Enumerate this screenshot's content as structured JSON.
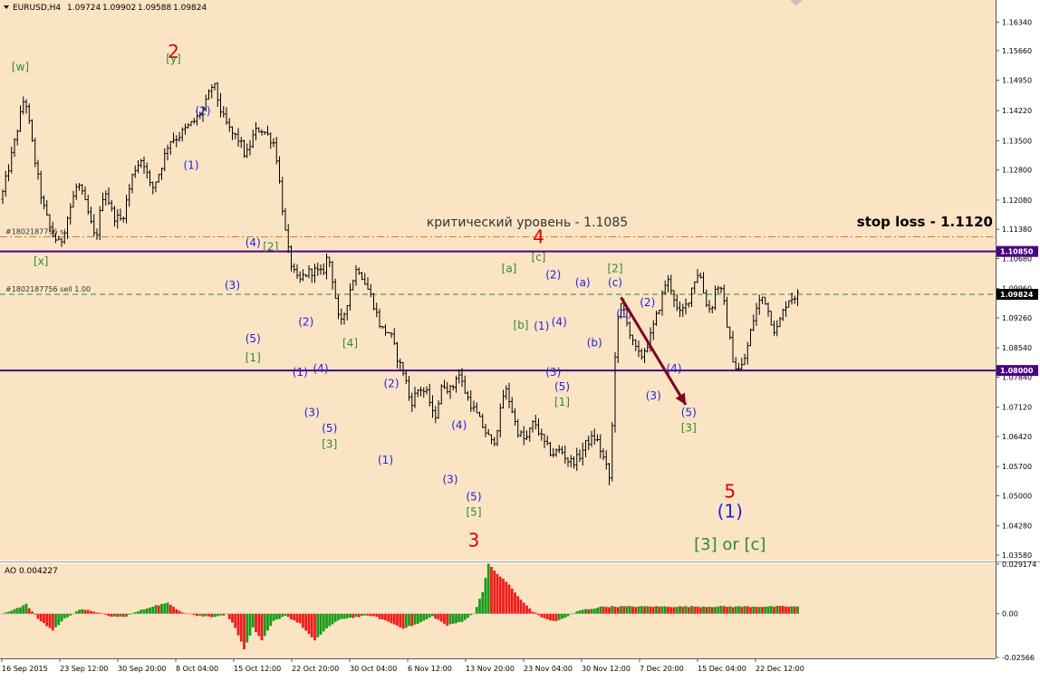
{
  "chart_data": [
    {
      "type": "ohlc",
      "header": {
        "symbol_timeframe": "EURUSD,H4",
        "open": "1.09724",
        "high": "1.09902",
        "low": "1.09588",
        "close": "1.09824"
      },
      "current_price": 1.09824,
      "ylim": [
        1.0345,
        1.1687
      ],
      "y_ticks": [
        "1.16340",
        "1.15660",
        "1.14950",
        "1.14220",
        "1.13500",
        "1.12800",
        "1.12080",
        "1.11380",
        "1.10680",
        "1.09960",
        "1.09260",
        "1.08540",
        "1.07840",
        "1.07120",
        "1.06420",
        "1.05700",
        "1.05000",
        "1.04280",
        "1.03580"
      ],
      "x_ticks": [
        "16 Sep 2015",
        "23 Sep 12:00",
        "30 Sep 20:00",
        "8 Oct 04:00",
        "15 Oct 12:00",
        "22 Oct 20:00",
        "30 Oct 04:00",
        "6 Nov 12:00",
        "13 Nov 20:00",
        "23 Nov 04:00",
        "30 Nov 12:00",
        "7 Dec 20:00",
        "15 Dec 04:00",
        "22 Dec 12:00"
      ],
      "price_path": [
        {
          "bar": 0,
          "price": 1.121
        },
        {
          "bar": 4,
          "price": 1.133
        },
        {
          "bar": 8,
          "price": 1.146
        },
        {
          "bar": 11,
          "price": 1.132
        },
        {
          "bar": 14,
          "price": 1.12
        },
        {
          "bar": 17,
          "price": 1.113
        },
        {
          "bar": 20,
          "price": 1.11
        },
        {
          "bar": 23,
          "price": 1.118
        },
        {
          "bar": 26,
          "price": 1.125
        },
        {
          "bar": 29,
          "price": 1.119
        },
        {
          "bar": 32,
          "price": 1.111
        },
        {
          "bar": 35,
          "price": 1.124
        },
        {
          "bar": 38,
          "price": 1.117
        },
        {
          "bar": 41,
          "price": 1.116
        },
        {
          "bar": 45,
          "price": 1.128
        },
        {
          "bar": 48,
          "price": 1.131
        },
        {
          "bar": 51,
          "price": 1.123
        },
        {
          "bar": 54,
          "price": 1.128
        },
        {
          "bar": 57,
          "price": 1.135
        },
        {
          "bar": 60,
          "price": 1.136
        },
        {
          "bar": 63,
          "price": 1.138
        },
        {
          "bar": 66,
          "price": 1.14
        },
        {
          "bar": 69,
          "price": 1.143
        },
        {
          "bar": 72,
          "price": 1.149
        },
        {
          "bar": 75,
          "price": 1.141
        },
        {
          "bar": 78,
          "price": 1.137
        },
        {
          "bar": 81,
          "price": 1.135
        },
        {
          "bar": 83,
          "price": 1.131
        },
        {
          "bar": 86,
          "price": 1.137
        },
        {
          "bar": 88,
          "price": 1.138
        },
        {
          "bar": 91,
          "price": 1.136
        },
        {
          "bar": 93,
          "price": 1.134
        },
        {
          "bar": 95,
          "price": 1.122
        },
        {
          "bar": 97,
          "price": 1.11
        },
        {
          "bar": 99,
          "price": 1.104
        },
        {
          "bar": 101,
          "price": 1.101
        },
        {
          "bar": 103,
          "price": 1.103
        },
        {
          "bar": 106,
          "price": 1.104
        },
        {
          "bar": 109,
          "price": 1.103
        },
        {
          "bar": 111,
          "price": 1.108
        },
        {
          "bar": 113,
          "price": 1.1
        },
        {
          "bar": 115,
          "price": 1.09
        },
        {
          "bar": 117,
          "price": 1.095
        },
        {
          "bar": 119,
          "price": 1.101
        },
        {
          "bar": 121,
          "price": 1.105
        },
        {
          "bar": 123,
          "price": 1.102
        },
        {
          "bar": 126,
          "price": 1.097
        },
        {
          "bar": 129,
          "price": 1.09
        },
        {
          "bar": 132,
          "price": 1.089
        },
        {
          "bar": 135,
          "price": 1.082
        },
        {
          "bar": 137,
          "price": 1.079
        },
        {
          "bar": 139,
          "price": 1.072
        },
        {
          "bar": 142,
          "price": 1.076
        },
        {
          "bar": 145,
          "price": 1.074
        },
        {
          "bar": 147,
          "price": 1.068
        },
        {
          "bar": 150,
          "price": 1.077
        },
        {
          "bar": 153,
          "price": 1.075
        },
        {
          "bar": 155,
          "price": 1.08
        },
        {
          "bar": 158,
          "price": 1.074
        },
        {
          "bar": 161,
          "price": 1.07
        },
        {
          "bar": 164,
          "price": 1.066
        },
        {
          "bar": 167,
          "price": 1.062
        },
        {
          "bar": 169,
          "price": 1.068
        },
        {
          "bar": 171,
          "price": 1.076
        },
        {
          "bar": 173,
          "price": 1.072
        },
        {
          "bar": 175,
          "price": 1.066
        },
        {
          "bar": 178,
          "price": 1.063
        },
        {
          "bar": 181,
          "price": 1.068
        },
        {
          "bar": 184,
          "price": 1.063
        },
        {
          "bar": 187,
          "price": 1.06
        },
        {
          "bar": 190,
          "price": 1.061
        },
        {
          "bar": 193,
          "price": 1.058
        },
        {
          "bar": 196,
          "price": 1.059
        },
        {
          "bar": 199,
          "price": 1.063
        },
        {
          "bar": 202,
          "price": 1.064
        },
        {
          "bar": 205,
          "price": 1.058
        },
        {
          "bar": 207,
          "price": 1.053
        },
        {
          "bar": 208,
          "price": 1.08
        },
        {
          "bar": 210,
          "price": 1.096
        },
        {
          "bar": 212,
          "price": 1.094
        },
        {
          "bar": 214,
          "price": 1.087
        },
        {
          "bar": 217,
          "price": 1.083
        },
        {
          "bar": 220,
          "price": 1.087
        },
        {
          "bar": 223,
          "price": 1.094
        },
        {
          "bar": 226,
          "price": 1.102
        },
        {
          "bar": 228,
          "price": 1.099
        },
        {
          "bar": 230,
          "price": 1.093
        },
        {
          "bar": 233,
          "price": 1.096
        },
        {
          "bar": 235,
          "price": 1.101
        },
        {
          "bar": 237,
          "price": 1.104
        },
        {
          "bar": 239,
          "price": 1.097
        },
        {
          "bar": 241,
          "price": 1.094
        },
        {
          "bar": 243,
          "price": 1.101
        },
        {
          "bar": 245,
          "price": 1.098
        },
        {
          "bar": 247,
          "price": 1.089
        },
        {
          "bar": 249,
          "price": 1.081
        },
        {
          "bar": 251,
          "price": 1.08
        },
        {
          "bar": 253,
          "price": 1.084
        },
        {
          "bar": 255,
          "price": 1.091
        },
        {
          "bar": 257,
          "price": 1.096
        },
        {
          "bar": 259,
          "price": 1.098
        },
        {
          "bar": 261,
          "price": 1.093
        },
        {
          "bar": 263,
          "price": 1.089
        },
        {
          "bar": 265,
          "price": 1.093
        },
        {
          "bar": 267,
          "price": 1.097
        },
        {
          "bar": 270,
          "price": 1.098
        }
      ],
      "horizontal_lines": [
        {
          "price": 1.1085,
          "style": "solid",
          "color": "#4b0082",
          "price_tag": "1.10850"
        },
        {
          "price": 1.08,
          "style": "solid",
          "color": "#4b0082",
          "price_tag": "1.08000"
        },
        {
          "price": 1.112,
          "style": "dashdot",
          "color": "#e07030",
          "label": "#1802187756 sl"
        },
        {
          "price": 1.09824,
          "style": "dashed",
          "color": "#2e8b2e",
          "label": "#1802187756 sell 1.00",
          "price_tag": "1.09824"
        }
      ],
      "annotations": {
        "critical_level": "критический уровень - 1.1085",
        "stop_loss": "stop loss - 1.1120"
      },
      "wave_labels": [
        {
          "text": "[w]",
          "color": "#2e8b2e",
          "bar": 6,
          "price": 1.1525,
          "size": 12
        },
        {
          "text": "[x]",
          "color": "#2e8b2e",
          "bar": 13,
          "price": 1.106,
          "size": 12
        },
        {
          "text": "2",
          "color": "#dd0000",
          "bar": 58,
          "price": 1.156,
          "size": 20
        },
        {
          "text": "[y]",
          "color": "#2e8b2e",
          "bar": 58,
          "price": 1.1545,
          "size": 12
        },
        {
          "text": "(2)",
          "color": "#2222dd",
          "bar": 68,
          "price": 1.142,
          "size": 12
        },
        {
          "text": "(1)",
          "color": "#2222dd",
          "bar": 64,
          "price": 1.129,
          "size": 12
        },
        {
          "text": "(4)",
          "color": "#2222dd",
          "bar": 85,
          "price": 1.1105,
          "size": 12
        },
        {
          "text": "[2]",
          "color": "#2e8b2e",
          "bar": 91,
          "price": 1.1095,
          "size": 12
        },
        {
          "text": "(3)",
          "color": "#2222dd",
          "bar": 78,
          "price": 1.1003,
          "size": 12
        },
        {
          "text": "(5)",
          "color": "#2222dd",
          "bar": 85,
          "price": 1.0875,
          "size": 12
        },
        {
          "text": "[1]",
          "color": "#2e8b2e",
          "bar": 85,
          "price": 1.083,
          "size": 12
        },
        {
          "text": "(2)",
          "color": "#2222dd",
          "bar": 103,
          "price": 1.0915,
          "size": 12
        },
        {
          "text": "(1)",
          "color": "#2222dd",
          "bar": 101,
          "price": 1.0795,
          "size": 12
        },
        {
          "text": "(4)",
          "color": "#2222dd",
          "bar": 108,
          "price": 1.0803,
          "size": 12
        },
        {
          "text": "[4]",
          "color": "#2e8b2e",
          "bar": 118,
          "price": 1.0864,
          "size": 12
        },
        {
          "text": "(3)",
          "color": "#2222dd",
          "bar": 105,
          "price": 1.0698,
          "size": 12
        },
        {
          "text": "(5)",
          "color": "#2222dd",
          "bar": 111,
          "price": 1.066,
          "size": 12
        },
        {
          "text": "[3]",
          "color": "#2e8b2e",
          "bar": 111,
          "price": 1.0622,
          "size": 12
        },
        {
          "text": "(2)",
          "color": "#2222dd",
          "bar": 132,
          "price": 1.0768,
          "size": 12
        },
        {
          "text": "(1)",
          "color": "#2222dd",
          "bar": 130,
          "price": 1.0585,
          "size": 12
        },
        {
          "text": "(4)",
          "color": "#2222dd",
          "bar": 155,
          "price": 1.0668,
          "size": 12
        },
        {
          "text": "(3)",
          "color": "#2222dd",
          "bar": 152,
          "price": 1.0538,
          "size": 12
        },
        {
          "text": "(5)",
          "color": "#2222dd",
          "bar": 160,
          "price": 1.0497,
          "size": 12
        },
        {
          "text": "[5]",
          "color": "#2e8b2e",
          "bar": 160,
          "price": 1.046,
          "size": 12
        },
        {
          "text": "3",
          "color": "#dd0000",
          "bar": 160,
          "price": 1.039,
          "size": 20
        },
        {
          "text": "[a]",
          "color": "#2e8b2e",
          "bar": 172,
          "price": 1.1043,
          "size": 12
        },
        {
          "text": "[b]",
          "color": "#2e8b2e",
          "bar": 176,
          "price": 1.0908,
          "size": 12
        },
        {
          "text": "4",
          "color": "#dd0000",
          "bar": 182,
          "price": 1.1117,
          "size": 20
        },
        {
          "text": "[c]",
          "color": "#2e8b2e",
          "bar": 182,
          "price": 1.107,
          "size": 12
        },
        {
          "text": "(2)",
          "color": "#2222dd",
          "bar": 187,
          "price": 1.1028,
          "size": 12
        },
        {
          "text": "(1)",
          "color": "#2222dd",
          "bar": 183,
          "price": 1.0905,
          "size": 12
        },
        {
          "text": "(4)",
          "color": "#2222dd",
          "bar": 189,
          "price": 1.0915,
          "size": 12
        },
        {
          "text": "(3)",
          "color": "#2222dd",
          "bar": 187,
          "price": 1.0795,
          "size": 12
        },
        {
          "text": "(5)",
          "color": "#2222dd",
          "bar": 190,
          "price": 1.076,
          "size": 12
        },
        {
          "text": "[1]",
          "color": "#2e8b2e",
          "bar": 190,
          "price": 1.0723,
          "size": 12
        },
        {
          "text": "(a)",
          "color": "#2222dd",
          "bar": 197,
          "price": 1.101,
          "size": 12
        },
        {
          "text": "(b)",
          "color": "#2222dd",
          "bar": 201,
          "price": 1.0865,
          "size": 12
        },
        {
          "text": "[2]",
          "color": "#2e8b2e",
          "bar": 208,
          "price": 1.1043,
          "size": 12
        },
        {
          "text": "(c)",
          "color": "#2222dd",
          "bar": 208,
          "price": 1.101,
          "size": 12
        },
        {
          "text": "(1)",
          "color": "#2222dd",
          "bar": 211,
          "price": 1.0935,
          "size": 12
        },
        {
          "text": "(2)",
          "color": "#2222dd",
          "bar": 219,
          "price": 1.0962,
          "size": 12
        },
        {
          "text": "(4)",
          "color": "#2222dd",
          "bar": 228,
          "price": 1.0803,
          "size": 12
        },
        {
          "text": "(3)",
          "color": "#2222dd",
          "bar": 221,
          "price": 1.0738,
          "size": 12
        },
        {
          "text": "(5)",
          "color": "#2222dd",
          "bar": 233,
          "price": 1.0698,
          "size": 12
        },
        {
          "text": "[3]",
          "color": "#2e8b2e",
          "bar": 233,
          "price": 1.0662,
          "size": 12
        },
        {
          "text": "5",
          "color": "#dd0000",
          "bar": 247,
          "price": 1.0508,
          "size": 20
        },
        {
          "text": "(1)",
          "color": "#2222dd",
          "bar": 247,
          "price": 1.046,
          "size": 20
        },
        {
          "text": "[3] or [c]",
          "color": "#2e8b2e",
          "bar": 247,
          "price": 1.0382,
          "size": 18
        }
      ],
      "forecast_arrow": {
        "from": {
          "bar": 210,
          "price": 1.0975
        },
        "to": {
          "bar": 232,
          "price": 1.0718
        },
        "color": "#800020"
      }
    },
    {
      "type": "bar",
      "title": "AO 0.004227",
      "ylim": [
        -0.0262,
        0.0296
      ],
      "y_ticks": [
        "0.029174",
        "0.00",
        "-0.02566"
      ],
      "ao_points": [
        {
          "bar": 0,
          "v": 0.0
        },
        {
          "bar": 8,
          "v": 0.0055
        },
        {
          "bar": 12,
          "v": -0.003
        },
        {
          "bar": 17,
          "v": -0.0098
        },
        {
          "bar": 21,
          "v": -0.003
        },
        {
          "bar": 26,
          "v": 0.0025
        },
        {
          "bar": 31,
          "v": 0.0015
        },
        {
          "bar": 36,
          "v": -0.0015
        },
        {
          "bar": 41,
          "v": -0.002
        },
        {
          "bar": 46,
          "v": 0.0015
        },
        {
          "bar": 51,
          "v": 0.0045
        },
        {
          "bar": 56,
          "v": 0.0062
        },
        {
          "bar": 61,
          "v": 0.001
        },
        {
          "bar": 66,
          "v": -0.0012
        },
        {
          "bar": 71,
          "v": -0.0018
        },
        {
          "bar": 76,
          "v": -0.0005
        },
        {
          "bar": 79,
          "v": -0.008
        },
        {
          "bar": 82,
          "v": -0.021
        },
        {
          "bar": 85,
          "v": -0.0085
        },
        {
          "bar": 88,
          "v": -0.016
        },
        {
          "bar": 92,
          "v": -0.0045
        },
        {
          "bar": 96,
          "v": -0.001
        },
        {
          "bar": 101,
          "v": -0.006
        },
        {
          "bar": 106,
          "v": -0.016
        },
        {
          "bar": 110,
          "v": -0.0085
        },
        {
          "bar": 115,
          "v": -0.003
        },
        {
          "bar": 120,
          "v": -0.002
        },
        {
          "bar": 125,
          "v": -0.001
        },
        {
          "bar": 130,
          "v": -0.004
        },
        {
          "bar": 136,
          "v": -0.0085
        },
        {
          "bar": 141,
          "v": -0.006
        },
        {
          "bar": 146,
          "v": -0.0015
        },
        {
          "bar": 151,
          "v": -0.007
        },
        {
          "bar": 156,
          "v": -0.0045
        },
        {
          "bar": 160,
          "v": 0.0
        },
        {
          "bar": 163,
          "v": 0.013
        },
        {
          "bar": 165,
          "v": 0.029
        },
        {
          "bar": 168,
          "v": 0.0235
        },
        {
          "bar": 172,
          "v": 0.017
        },
        {
          "bar": 176,
          "v": 0.008
        },
        {
          "bar": 180,
          "v": 0.0015
        },
        {
          "bar": 184,
          "v": -0.003
        },
        {
          "bar": 188,
          "v": -0.0045
        },
        {
          "bar": 192,
          "v": -0.0015
        },
        {
          "bar": 196,
          "v": 0.002
        },
        {
          "bar": 200,
          "v": 0.003
        },
        {
          "bar": 204,
          "v": 0.0042
        },
        {
          "bar": 210,
          "v": 0.004227
        }
      ]
    }
  ]
}
